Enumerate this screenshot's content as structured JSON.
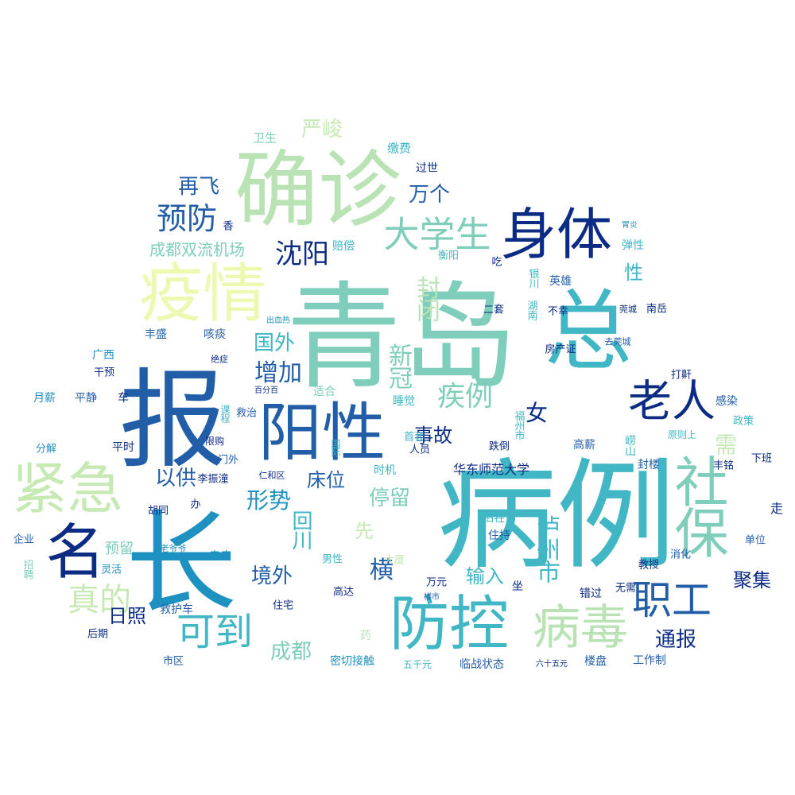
{
  "palette": {
    "c1": "#d8efb6",
    "c2": "#b9e3b5",
    "c3": "#7fcdbb",
    "c4": "#41b6c4",
    "c5": "#1d91c0",
    "c6": "#225ea8",
    "c7": "#253494",
    "c8": "#0c2c84",
    "c9": "#edf8b1"
  },
  "words": [
    "病例",
    "青岛",
    "报",
    "长",
    "确诊",
    "总",
    "疫情",
    "阳性",
    "紧急",
    "防控",
    "身体",
    "病毒",
    "社保",
    "名",
    "老人",
    "职工",
    "可到",
    "大学生",
    "疾例",
    "预防",
    "沈阳",
    "再飞",
    "真的",
    "成都双流机场",
    "国外",
    "增加",
    "严峻",
    "形势",
    "停留",
    "事故",
    "床位",
    "横",
    "以供",
    "万个",
    "通报",
    "境外",
    "日照",
    "成都",
    "聚集",
    "输入",
    "回川",
    "新冠",
    "封闭",
    "泸州市",
    "华东师范大学",
    "女",
    "性",
    "需",
    "停留",
    "预留",
    "卫生",
    "缴费",
    "过世",
    "咳痰",
    "丰盛",
    "广西",
    "干预",
    "月薪",
    "平静",
    "车",
    "平时",
    "分解",
    "企业",
    "招聘",
    "灵活",
    "救护车",
    "后期",
    "市区",
    "寺庙",
    "胡同",
    "门外",
    "李振潼",
    "仁和区",
    "办",
    "救治",
    "课程",
    "适合",
    "睡觉",
    "首套",
    "人员",
    "时机",
    "住持",
    "牺牲",
    "男性",
    "高达",
    "万元",
    "住宅",
    "楼市",
    "五千元",
    "临战状态",
    "密切接触",
    "药",
    "坐",
    "错过",
    "无需",
    "教授",
    "消化",
    "楼盘",
    "工作制",
    "六十五元",
    "高薪",
    "封楼",
    "崂山",
    "丰铭",
    "走",
    "下班",
    "单位",
    "感染",
    "政策",
    "打鼾",
    "房产证",
    "英雄",
    "不幸",
    "莞城",
    "南岳",
    "去莞城",
    "银川",
    "弹性",
    "胃炎",
    "吃",
    "衡阳",
    "赔偿",
    "绝症",
    "出血热",
    "百分百",
    "湖南",
    "二套",
    "跌倒",
    "福州市",
    "原则上",
    "香",
    "国际",
    "限购",
    "老爷爷",
    "大厦",
    "先"
  ]
}
